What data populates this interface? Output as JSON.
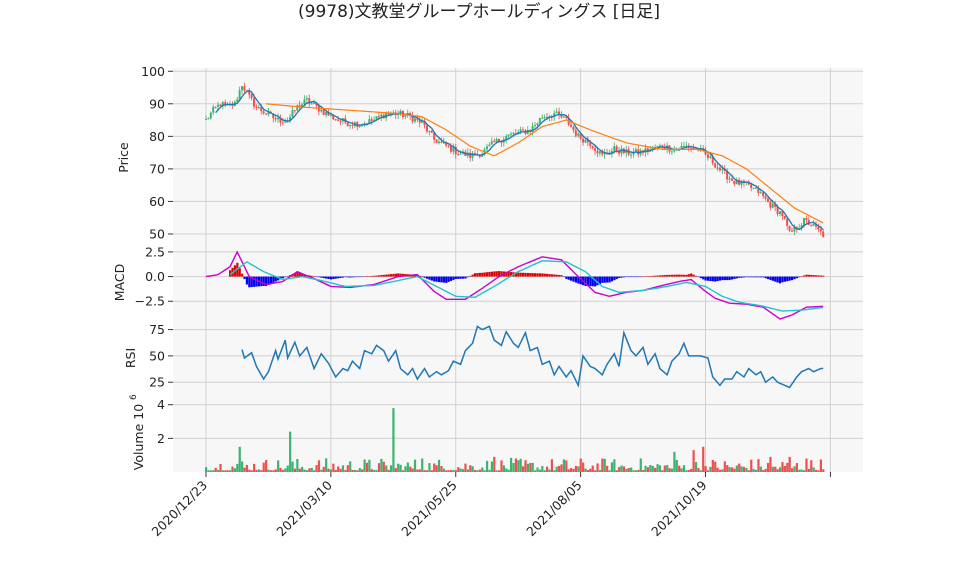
{
  "title": "(9978)文教堂グループホールディングス [日足]",
  "colors": {
    "panel_bg": "#f7f7f7",
    "grid": "#d0d0d0",
    "up": "#3cb371",
    "down": "#ef4f4f",
    "sma_short": "#1f77b4",
    "sma_long": "#ff7f0e",
    "macd_line": "#cc00cc",
    "macd_signal": "#22c3cc",
    "hist_pos": "#dd0000",
    "hist_neg": "#0000ee",
    "rsi": "#1f77b4"
  },
  "chart_data": {
    "type": "candlestick",
    "x_ticks": [
      "2020/12/23",
      "2021/03/10",
      "2021/05/25",
      "2021/08/05",
      "2021/10/19"
    ],
    "panels": {
      "price": {
        "ylabel": "Price",
        "ylim": [
          46,
          101
        ],
        "yticks": [
          "100",
          "90",
          "80",
          "70",
          "60",
          "50"
        ],
        "close_anchors": [
          [
            0,
            85
          ],
          [
            3,
            88
          ],
          [
            6,
            90
          ],
          [
            9,
            89
          ],
          [
            12,
            90
          ],
          [
            15,
            96
          ],
          [
            18,
            92
          ],
          [
            21,
            89
          ],
          [
            25,
            87
          ],
          [
            30,
            85
          ],
          [
            34,
            85
          ],
          [
            38,
            89
          ],
          [
            42,
            91
          ],
          [
            46,
            89
          ],
          [
            50,
            87
          ],
          [
            55,
            85
          ],
          [
            60,
            84
          ],
          [
            65,
            84
          ],
          [
            70,
            85
          ],
          [
            75,
            87
          ],
          [
            80,
            87
          ],
          [
            85,
            86
          ],
          [
            90,
            84
          ],
          [
            95,
            79
          ],
          [
            100,
            77
          ],
          [
            105,
            75
          ],
          [
            110,
            74
          ],
          [
            115,
            75
          ],
          [
            120,
            78
          ],
          [
            125,
            80
          ],
          [
            130,
            81
          ],
          [
            135,
            82
          ],
          [
            140,
            86
          ],
          [
            145,
            87
          ],
          [
            150,
            85
          ],
          [
            155,
            80
          ],
          [
            160,
            78
          ],
          [
            165,
            74
          ],
          [
            170,
            76
          ],
          [
            175,
            75
          ],
          [
            180,
            75
          ],
          [
            185,
            76
          ],
          [
            190,
            77
          ],
          [
            195,
            76
          ],
          [
            200,
            77
          ],
          [
            205,
            76
          ],
          [
            210,
            73
          ],
          [
            215,
            69
          ],
          [
            220,
            66
          ],
          [
            225,
            65
          ],
          [
            230,
            63
          ],
          [
            235,
            59
          ],
          [
            240,
            56
          ],
          [
            243,
            50
          ],
          [
            246,
            52
          ],
          [
            249,
            54
          ],
          [
            252,
            53
          ],
          [
            255,
            51
          ],
          [
            258,
            49
          ]
        ],
        "sma_long_anchors": [
          [
            25,
            90
          ],
          [
            40,
            89
          ],
          [
            60,
            88
          ],
          [
            80,
            87
          ],
          [
            90,
            86
          ],
          [
            100,
            82
          ],
          [
            110,
            77
          ],
          [
            120,
            74
          ],
          [
            130,
            78
          ],
          [
            140,
            83
          ],
          [
            150,
            85
          ],
          [
            160,
            82
          ],
          [
            175,
            78
          ],
          [
            190,
            76
          ],
          [
            205,
            76
          ],
          [
            215,
            74
          ],
          [
            225,
            70
          ],
          [
            235,
            64
          ],
          [
            245,
            58
          ],
          [
            258,
            53
          ]
        ]
      },
      "macd": {
        "ylabel": "MACD",
        "ylim": [
          -4.2,
          3.0
        ],
        "yticks": [
          "2.5",
          "0.0",
          "−2.5"
        ],
        "macd_anchors": [
          [
            0,
            0
          ],
          [
            5,
            0.2
          ],
          [
            10,
            1
          ],
          [
            13,
            2.5
          ],
          [
            18,
            0
          ],
          [
            25,
            -0.8
          ],
          [
            32,
            -0.5
          ],
          [
            38,
            0.5
          ],
          [
            45,
            -0.2
          ],
          [
            52,
            -1
          ],
          [
            60,
            -1.1
          ],
          [
            70,
            -0.8
          ],
          [
            80,
            0
          ],
          [
            88,
            0.2
          ],
          [
            95,
            -1.5
          ],
          [
            100,
            -2.3
          ],
          [
            108,
            -2.3
          ],
          [
            115,
            -1.2
          ],
          [
            122,
            0
          ],
          [
            130,
            1
          ],
          [
            140,
            2
          ],
          [
            148,
            1.7
          ],
          [
            155,
            0
          ],
          [
            162,
            -1.6
          ],
          [
            168,
            -2
          ],
          [
            175,
            -1.6
          ],
          [
            182,
            -1.4
          ],
          [
            190,
            -0.9
          ],
          [
            197,
            -0.5
          ],
          [
            202,
            -0.3
          ],
          [
            208,
            -1.5
          ],
          [
            212,
            -2.2
          ],
          [
            218,
            -2.7
          ],
          [
            225,
            -2.8
          ],
          [
            232,
            -3.1
          ],
          [
            239,
            -4.3
          ],
          [
            244,
            -3.9
          ],
          [
            250,
            -3.1
          ],
          [
            258,
            -3.0
          ]
        ],
        "signal_anchors": [
          [
            10,
            0.2
          ],
          [
            17,
            1.5
          ],
          [
            24,
            0.5
          ],
          [
            32,
            -0.3
          ],
          [
            40,
            0
          ],
          [
            48,
            -0.4
          ],
          [
            58,
            -1
          ],
          [
            70,
            -0.9
          ],
          [
            80,
            -0.4
          ],
          [
            88,
            0
          ],
          [
            96,
            -1
          ],
          [
            104,
            -2
          ],
          [
            112,
            -2.1
          ],
          [
            120,
            -1
          ],
          [
            130,
            0.5
          ],
          [
            140,
            1.6
          ],
          [
            150,
            1.5
          ],
          [
            158,
            0.5
          ],
          [
            165,
            -1
          ],
          [
            172,
            -1.6
          ],
          [
            182,
            -1.4
          ],
          [
            192,
            -1
          ],
          [
            200,
            -0.6
          ],
          [
            208,
            -1
          ],
          [
            215,
            -2
          ],
          [
            222,
            -2.6
          ],
          [
            232,
            -3
          ],
          [
            240,
            -3.5
          ],
          [
            248,
            -3.4
          ],
          [
            258,
            -3.1
          ]
        ]
      },
      "rsi": {
        "ylabel": "RSI",
        "ylim": [
          10,
          86
        ],
        "yticks": [
          "75",
          "50",
          "25"
        ],
        "rsi_anchors": [
          [
            15,
            52
          ],
          [
            18,
            56
          ],
          [
            20,
            48
          ],
          [
            23,
            53
          ],
          [
            26,
            40
          ],
          [
            29,
            28
          ],
          [
            32,
            35
          ],
          [
            35,
            55
          ],
          [
            37,
            47
          ],
          [
            40,
            65
          ],
          [
            42,
            48
          ],
          [
            45,
            63
          ],
          [
            48,
            50
          ],
          [
            51,
            58
          ],
          [
            55,
            38
          ],
          [
            58,
            52
          ],
          [
            62,
            43
          ],
          [
            66,
            30
          ],
          [
            69,
            38
          ],
          [
            72,
            36
          ],
          [
            75,
            45
          ],
          [
            78,
            38
          ],
          [
            81,
            55
          ],
          [
            84,
            52
          ],
          [
            87,
            60
          ],
          [
            90,
            55
          ],
          [
            93,
            45
          ],
          [
            96,
            55
          ],
          [
            99,
            38
          ],
          [
            102,
            32
          ],
          [
            105,
            38
          ],
          [
            108,
            28
          ],
          [
            111,
            38
          ],
          [
            114,
            30
          ],
          [
            117,
            35
          ],
          [
            120,
            32
          ],
          [
            123,
            36
          ],
          [
            126,
            45
          ],
          [
            129,
            42
          ],
          [
            132,
            55
          ],
          [
            135,
            62
          ],
          [
            138,
            78
          ],
          [
            141,
            75
          ],
          [
            144,
            78
          ],
          [
            147,
            65
          ],
          [
            150,
            60
          ],
          [
            153,
            73
          ],
          [
            156,
            62
          ],
          [
            159,
            58
          ],
          [
            162,
            72
          ],
          [
            165,
            55
          ],
          [
            168,
            58
          ],
          [
            171,
            42
          ],
          [
            174,
            45
          ],
          [
            177,
            32
          ],
          [
            180,
            40
          ],
          [
            183,
            30
          ],
          [
            186,
            36
          ],
          [
            189,
            22
          ],
          [
            192,
            50
          ],
          [
            195,
            40
          ],
          [
            198,
            38
          ],
          [
            201,
            32
          ],
          [
            204,
            42
          ],
          [
            207,
            52
          ],
          [
            210,
            40
          ],
          [
            213,
            72
          ],
          [
            216,
            55
          ],
          [
            219,
            50
          ],
          [
            222,
            58
          ],
          [
            225,
            42
          ],
          [
            228,
            52
          ],
          [
            231,
            38
          ],
          [
            234,
            32
          ],
          [
            237,
            45
          ],
          [
            240,
            52
          ],
          [
            243,
            62
          ],
          [
            246,
            50
          ],
          [
            249,
            50
          ],
          [
            252,
            50
          ],
          [
            255,
            48
          ],
          [
            258,
            30
          ],
          [
            261,
            22
          ],
          [
            264,
            28
          ],
          [
            267,
            28
          ],
          [
            270,
            35
          ],
          [
            273,
            30
          ],
          [
            276,
            38
          ],
          [
            279,
            32
          ],
          [
            282,
            35
          ],
          [
            285,
            25
          ],
          [
            288,
            30
          ],
          [
            291,
            25
          ],
          [
            294,
            22
          ],
          [
            297,
            20
          ],
          [
            300,
            30
          ],
          [
            303,
            35
          ],
          [
            306,
            38
          ],
          [
            309,
            35
          ],
          [
            312,
            38
          ],
          [
            315,
            38
          ]
        ]
      },
      "volume": {
        "ylabel": "Volume",
        "scale_label": "1e6",
        "ylim": [
          0,
          4.4
        ],
        "yticks": [
          "4",
          "2"
        ],
        "spikes": [
          [
            35,
            2.4
          ],
          [
            78,
            3.8
          ],
          [
            195,
            1.2
          ],
          [
            203,
            1.3
          ],
          [
            207,
            1.5
          ],
          [
            14,
            1.5
          ],
          [
            120,
            0.9
          ],
          [
            90,
            0.8
          ],
          [
            130,
            0.7
          ],
          [
            235,
            0.9
          ],
          [
            243,
            0.9
          ],
          [
            250,
            0.8
          ]
        ]
      }
    }
  }
}
